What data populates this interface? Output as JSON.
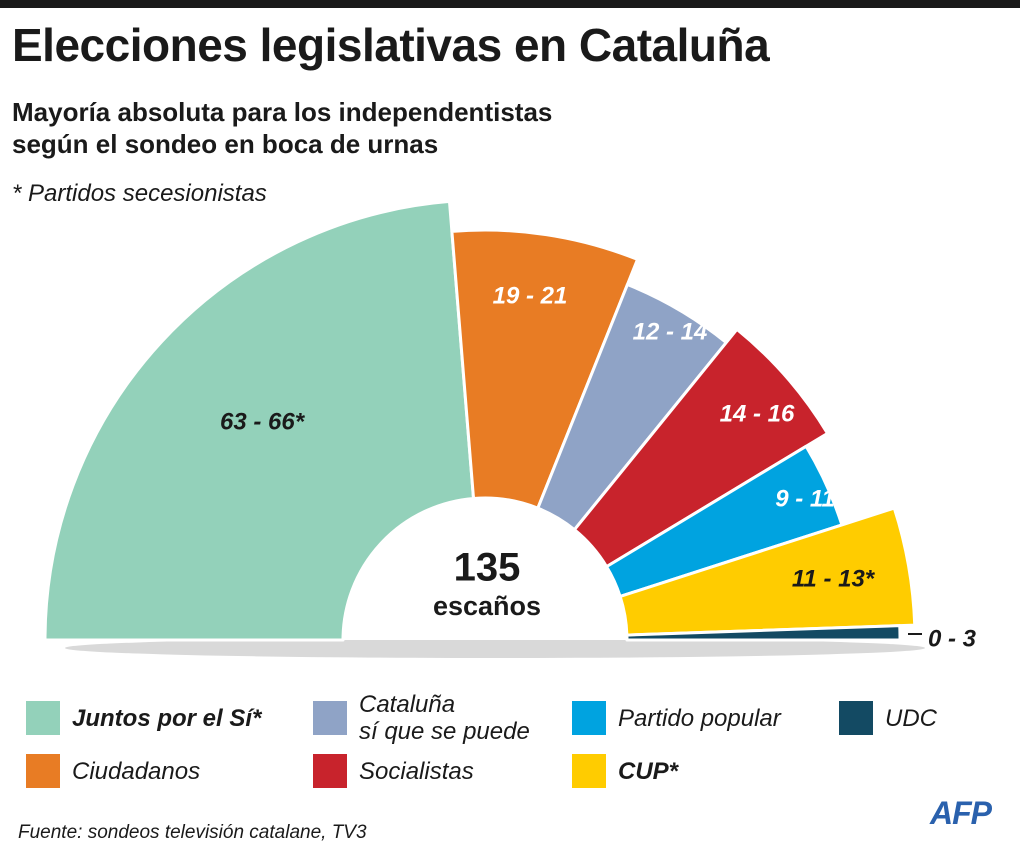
{
  "header": {
    "title": "Elecciones legislativas en Cataluña",
    "subtitle_line1": "Mayoría absoluta para los independentistas",
    "subtitle_line2": "según el sondeo en boca de urnas",
    "note": "* Partidos secesionistas"
  },
  "center": {
    "number": "135",
    "label": "escaños"
  },
  "chart_data": {
    "type": "pie",
    "shape": "half-donut (parliament)",
    "total_seats": 135,
    "series": [
      {
        "name": "Juntos por el Sí*",
        "label": "63 - 66*",
        "min": 63,
        "max": 66,
        "value": 64.5,
        "color": "#93d1ba",
        "label_color": "#1a1a1a"
      },
      {
        "name": "Ciudadanos",
        "label": "19 - 21",
        "min": 19,
        "max": 21,
        "value": 20,
        "color": "#e87c24",
        "label_color": "#ffffff"
      },
      {
        "name": "Cataluña sí que se puede",
        "label": "12 - 14",
        "min": 12,
        "max": 14,
        "value": 13,
        "color": "#8fa3c6",
        "label_color": "#ffffff"
      },
      {
        "name": "Socialistas",
        "label": "14 - 16",
        "min": 14,
        "max": 16,
        "value": 15,
        "color": "#c8232c",
        "label_color": "#ffffff"
      },
      {
        "name": "Partido popular",
        "label": "9 - 11",
        "min": 9,
        "max": 11,
        "value": 10,
        "color": "#00a3e0",
        "label_color": "#ffffff"
      },
      {
        "name": "CUP*",
        "label": "11 - 13*",
        "min": 11,
        "max": 13,
        "value": 12,
        "color": "#ffcc00",
        "label_color": "#1a1a1a"
      },
      {
        "name": "UDC",
        "label": "0 - 3",
        "min": 0,
        "max": 3,
        "value": 1.5,
        "color": "#134a63",
        "label_color": "#1a1a1a"
      }
    ]
  },
  "legend": [
    {
      "lines": [
        "Juntos por el Sí*"
      ],
      "color": "#93d1ba",
      "bold": true
    },
    {
      "lines": [
        "Cataluña",
        "sí que se puede"
      ],
      "color": "#8fa3c6",
      "bold": false
    },
    {
      "lines": [
        "Partido popular"
      ],
      "color": "#00a3e0",
      "bold": false
    },
    {
      "lines": [
        "UDC"
      ],
      "color": "#134a63",
      "bold": false
    },
    {
      "lines": [
        "Ciudadanos"
      ],
      "color": "#e87c24",
      "bold": false
    },
    {
      "lines": [
        "Socialistas"
      ],
      "color": "#c8232c",
      "bold": false
    },
    {
      "lines": [
        "CUP*"
      ],
      "color": "#ffcc00",
      "bold": true
    }
  ],
  "footer": {
    "source": "Fuente: sondeos televisión catalane, TV3",
    "logo": "AFP"
  }
}
